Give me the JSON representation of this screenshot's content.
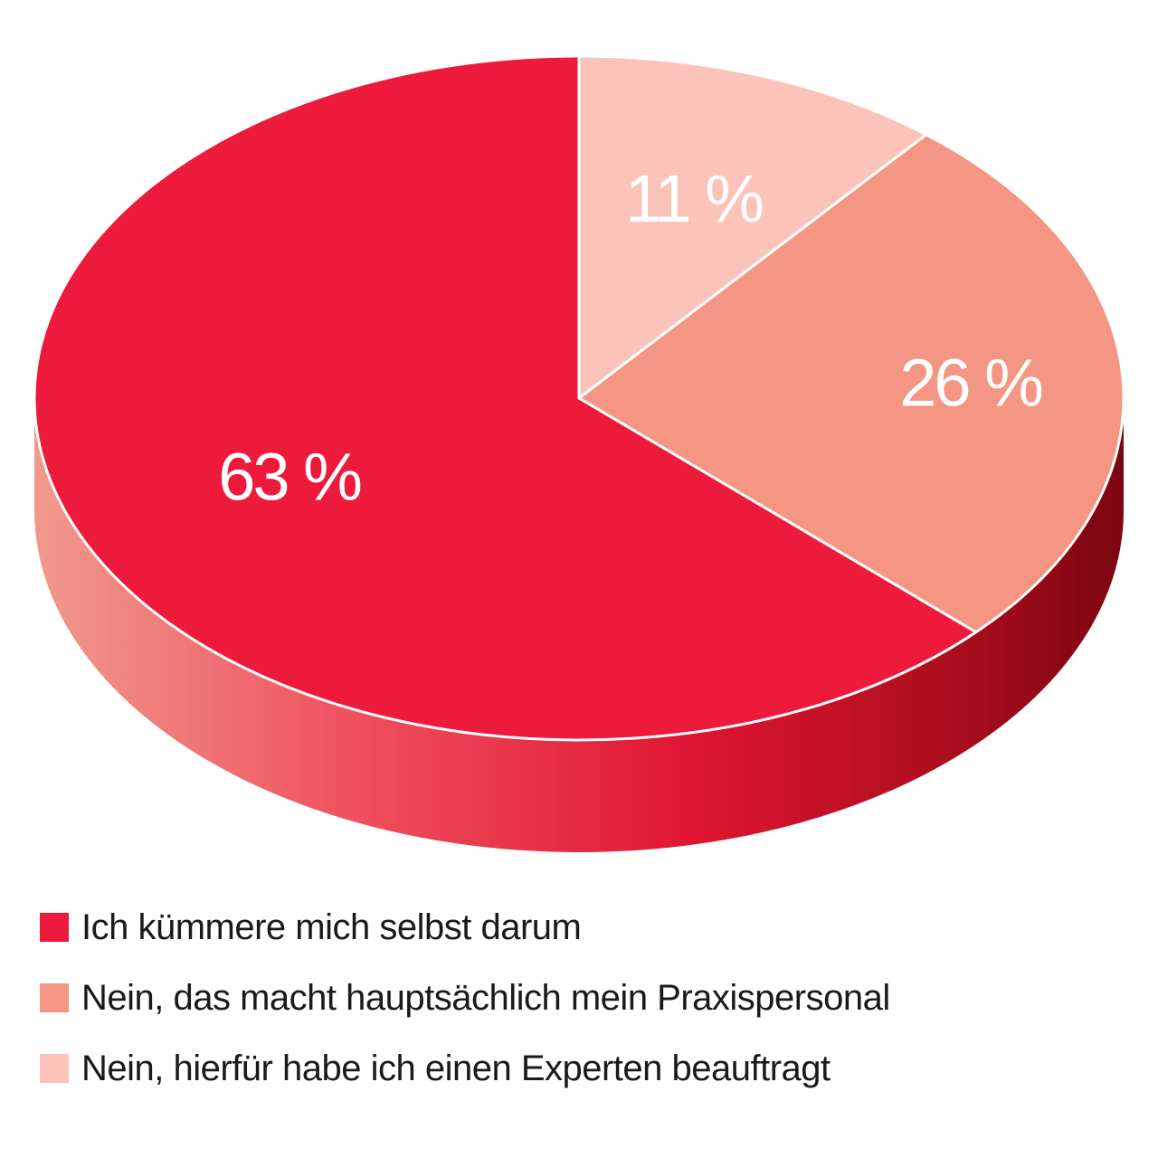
{
  "chart_data": {
    "type": "pie",
    "slices": [
      {
        "label": "Ich kümmere mich selbst darum",
        "value": 63,
        "value_label": "63 %",
        "color": "#ee1a3b"
      },
      {
        "label": "Nein, das macht hauptsächlich mein Praxispersonal",
        "value": 26,
        "value_label": "26 %",
        "color": "#f59583"
      },
      {
        "label": "Nein, hierfür habe ich einen Experten beauftragt",
        "value": 11,
        "value_label": "11 %",
        "color": "#fbc3b9"
      }
    ],
    "legend_position": "bottom",
    "style": "3d"
  }
}
